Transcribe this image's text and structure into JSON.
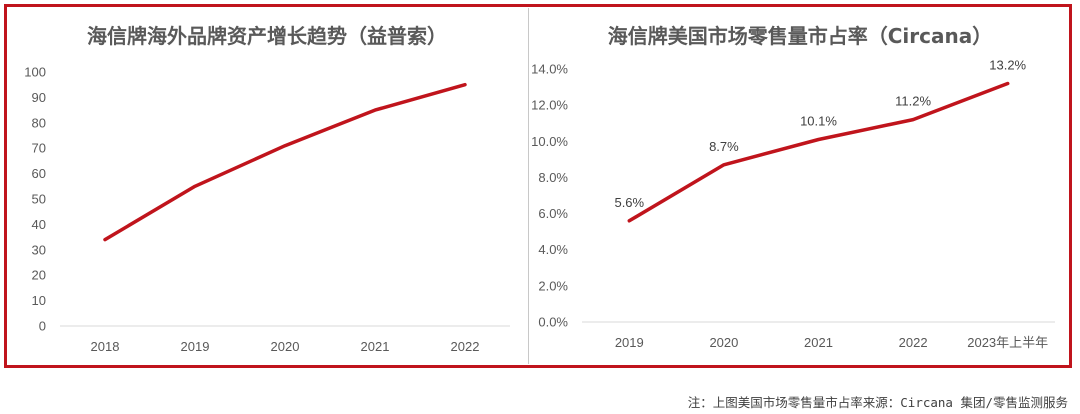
{
  "chart_data": [
    {
      "type": "line",
      "title": "海信牌海外品牌资产增长趋势（益普索）",
      "categories": [
        "2018",
        "2019",
        "2020",
        "2021",
        "2022"
      ],
      "series": [
        {
          "values": [
            34,
            55,
            71,
            85,
            95
          ]
        }
      ],
      "yticks": [
        "0",
        "10",
        "20",
        "30",
        "40",
        "50",
        "60",
        "70",
        "80",
        "90",
        "100"
      ],
      "ylim": [
        0,
        100
      ],
      "grid": false,
      "line_color": "#c0141c"
    },
    {
      "type": "line",
      "title": "海信牌美国市场零售量市占率（Circana）",
      "categories": [
        "2019",
        "2020",
        "2021",
        "2022",
        "2023年上半年"
      ],
      "series": [
        {
          "values": [
            5.6,
            8.7,
            10.1,
            11.2,
            13.2
          ]
        }
      ],
      "data_labels": [
        "5.6%",
        "8.7%",
        "10.1%",
        "11.2%",
        "13.2%"
      ],
      "yticks": [
        "0.0%",
        "2.0%",
        "4.0%",
        "6.0%",
        "8.0%",
        "10.0%",
        "12.0%",
        "14.0%"
      ],
      "ylim": [
        0,
        14
      ],
      "grid": false,
      "line_color": "#c0141c"
    }
  ],
  "footnote": "注：上图美国市场零售量市占率来源：Circana 集团/零售监测服务"
}
